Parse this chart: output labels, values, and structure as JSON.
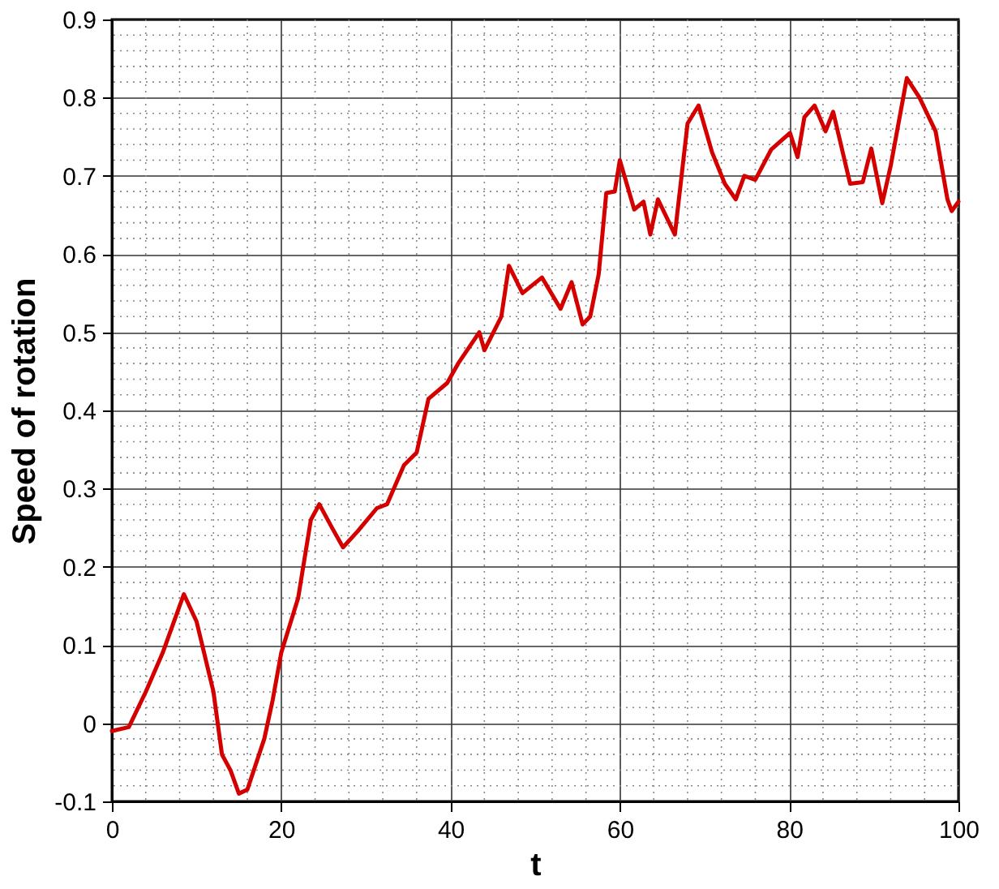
{
  "chart_data": {
    "type": "line",
    "xlabel": "t",
    "ylabel": "Speed of rotation",
    "xlim": [
      0,
      100
    ],
    "xticks": [
      0,
      20,
      40,
      60,
      80,
      100
    ],
    "ylim": [
      -0.1,
      0.9
    ],
    "yticks": [
      -0.1,
      0,
      0.1,
      0.2,
      0.3,
      0.4,
      0.5,
      0.6,
      0.7,
      0.8,
      0.9
    ],
    "grid": true,
    "marker": "none",
    "line_style": "solid",
    "series": [
      {
        "color": "#d40000",
        "x": [
          0,
          2,
          4,
          6,
          8,
          8.5,
          10,
          12,
          13,
          14,
          15,
          16,
          18,
          19,
          20,
          22,
          23.5,
          24.5,
          26,
          27.3,
          29,
          31.3,
          32.5,
          34.5,
          36,
          37.4,
          39.6,
          40.9,
          43.4,
          44,
          46,
          46.9,
          48.5,
          50.8,
          53,
          54.3,
          55.6,
          56.5,
          57.5,
          58.4,
          59.4,
          60,
          61.7,
          62.8,
          63.6,
          64.5,
          66.5,
          68,
          69.3,
          70.9,
          72.4,
          73.7,
          74.7,
          76,
          77.9,
          80.1,
          81,
          81.8,
          83,
          84.3,
          85.2,
          87.2,
          88.7,
          89.7,
          91,
          92,
          93.9,
          95.4,
          97.3,
          98.7,
          99.2,
          100
        ],
        "values": [
          -0.01,
          -0.005,
          0.04,
          0.09,
          0.15,
          0.165,
          0.13,
          0.04,
          -0.04,
          -0.06,
          -0.09,
          -0.085,
          -0.02,
          0.03,
          0.09,
          0.16,
          0.26,
          0.28,
          0.25,
          0.225,
          0.245,
          0.275,
          0.28,
          0.33,
          0.346,
          0.415,
          0.435,
          0.46,
          0.5,
          0.477,
          0.52,
          0.585,
          0.55,
          0.57,
          0.53,
          0.564,
          0.51,
          0.52,
          0.574,
          0.678,
          0.68,
          0.72,
          0.657,
          0.667,
          0.625,
          0.67,
          0.625,
          0.767,
          0.79,
          0.73,
          0.69,
          0.67,
          0.7,
          0.695,
          0.734,
          0.755,
          0.724,
          0.775,
          0.79,
          0.757,
          0.782,
          0.69,
          0.692,
          0.735,
          0.665,
          0.713,
          0.825,
          0.8,
          0.757,
          0.67,
          0.655,
          0.667
        ]
      }
    ]
  }
}
